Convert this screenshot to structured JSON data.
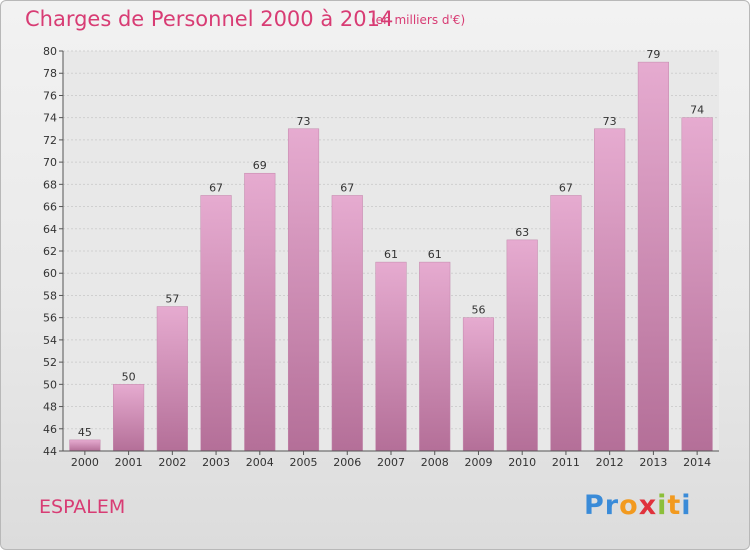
{
  "header": {
    "title": "Charges de Personnel 2000 à 2014",
    "subtitle": "(en milliers d'€)"
  },
  "footer": {
    "commune": "ESPALEM",
    "brand": {
      "letters": [
        "P",
        "r",
        "o",
        "x",
        "i",
        "t",
        "i"
      ],
      "colors": [
        "#3a8bd8",
        "#3a8bd8",
        "#f29a1f",
        "#e0323c",
        "#8cbf3a",
        "#f29a1f",
        "#3a8bd8"
      ]
    }
  },
  "chart_data": {
    "type": "bar",
    "categories": [
      "2000",
      "2001",
      "2002",
      "2003",
      "2004",
      "2005",
      "2006",
      "2007",
      "2008",
      "2009",
      "2010",
      "2011",
      "2012",
      "2013",
      "2014"
    ],
    "values": [
      45,
      50,
      57,
      67,
      69,
      73,
      67,
      61,
      61,
      56,
      63,
      67,
      73,
      79,
      74
    ],
    "data_labels": [
      "45",
      "50",
      "57",
      "67",
      "69",
      "73",
      "67",
      "61",
      "61",
      "56",
      "63",
      "67",
      "73",
      "79",
      "74"
    ],
    "ylim": [
      44,
      80
    ],
    "ytick_step": 2,
    "grid": true,
    "bar_color": "#d68fb8",
    "accent": "#d83c74"
  }
}
